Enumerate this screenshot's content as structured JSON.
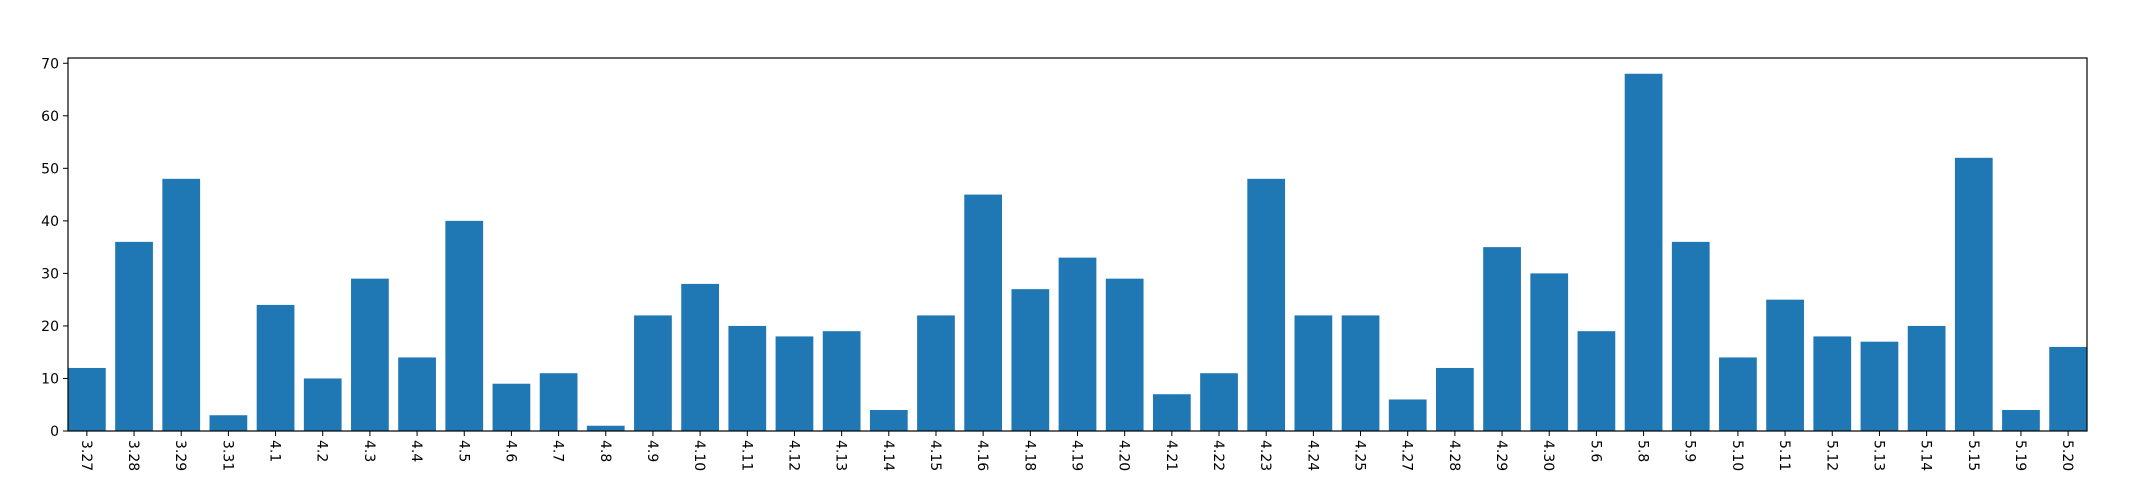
{
  "chart_data": {
    "type": "bar",
    "title": "",
    "xlabel": "",
    "ylabel": "",
    "ylim": [
      0,
      71
    ],
    "yticks": [
      0,
      10,
      20,
      30,
      40,
      50,
      60,
      70
    ],
    "categories": [
      "3.27",
      "3.28",
      "3.29",
      "3.31",
      "4.1",
      "4.2",
      "4.3",
      "4.4",
      "4.5",
      "4.6",
      "4.7",
      "4.8",
      "4.9",
      "4.10",
      "4.11",
      "4.12",
      "4.13",
      "4.14",
      "4.15",
      "4.16",
      "4.18",
      "4.19",
      "4.20",
      "4.21",
      "4.22",
      "4.23",
      "4.24",
      "4.25",
      "4.27",
      "4.28",
      "4.29",
      "4.30",
      "5.6",
      "5.8",
      "5.9",
      "5.10",
      "5.11",
      "5.12",
      "5.13",
      "5.14",
      "5.15",
      "5.19",
      "5.20"
    ],
    "values": [
      12,
      36,
      48,
      3,
      24,
      10,
      29,
      14,
      40,
      9,
      11,
      1,
      22,
      28,
      20,
      18,
      19,
      4,
      22,
      45,
      27,
      33,
      29,
      7,
      11,
      48,
      22,
      22,
      6,
      12,
      35,
      30,
      19,
      68,
      36,
      14,
      25,
      18,
      17,
      20,
      52,
      4,
      16
    ],
    "bar_color": "#1f77b4",
    "grid": false,
    "legend": "none"
  }
}
